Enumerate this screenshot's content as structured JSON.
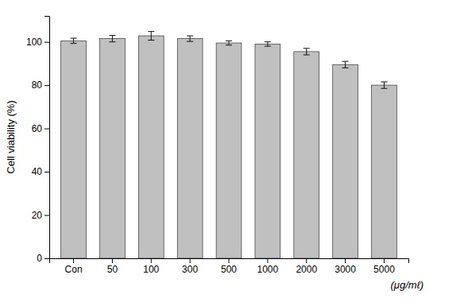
{
  "chart_data": {
    "type": "bar",
    "ylabel": "Cell viability (%)",
    "annotations": [
      "(μg/mℓ)"
    ],
    "categories": [
      "Con",
      "50",
      "100",
      "300",
      "500",
      "1000",
      "2000",
      "3000",
      "5000"
    ],
    "values": [
      100.5,
      101.5,
      102.8,
      101.5,
      99.5,
      99.0,
      95.5,
      89.5,
      80.0
    ],
    "errors": [
      1.2,
      1.5,
      2.0,
      1.3,
      1.0,
      1.0,
      1.5,
      1.5,
      1.5
    ],
    "color": "#c0c0c0",
    "ylim": [
      0,
      112
    ],
    "yticks": [
      0,
      20,
      40,
      60,
      80,
      100
    ],
    "grid": false
  }
}
